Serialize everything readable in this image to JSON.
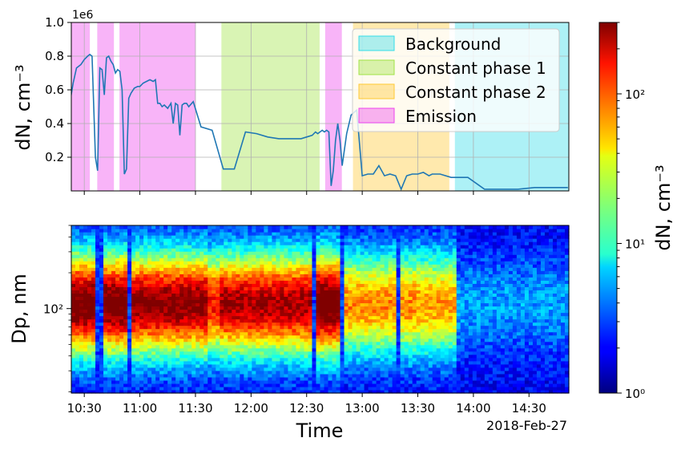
{
  "chart_data": [
    {
      "type": "line",
      "panel": "top",
      "ylabel": "dN, cm⁻³",
      "offset_label": "1e6",
      "ylim": [
        0,
        1.0
      ],
      "yticks": [
        0.2,
        0.4,
        0.6,
        0.8,
        1.0
      ],
      "ytick_labels": [
        "0.2",
        "0.4",
        "0.6",
        "0.8",
        "1.0"
      ],
      "xlim_minutes": [
        10.3833,
        14.8583
      ],
      "grid": true,
      "line_color": "#1f77b4",
      "series": [
        {
          "name": "dN",
          "x_hours": [
            10.38,
            10.4,
            10.43,
            10.47,
            10.5,
            10.53,
            10.55,
            10.57,
            10.6,
            10.62,
            10.64,
            10.66,
            10.68,
            10.7,
            10.72,
            10.74,
            10.76,
            10.78,
            10.8,
            10.82,
            10.84,
            10.86,
            10.88,
            10.9,
            10.92,
            10.95,
            10.98,
            11.0,
            11.03,
            11.06,
            11.09,
            11.12,
            11.14,
            11.16,
            11.18,
            11.2,
            11.22,
            11.25,
            11.28,
            11.3,
            11.32,
            11.34,
            11.36,
            11.38,
            11.4,
            11.42,
            11.44,
            11.48,
            11.55,
            11.65,
            11.75,
            11.85,
            11.95,
            12.05,
            12.15,
            12.25,
            12.35,
            12.45,
            12.5,
            12.55,
            12.58,
            12.6,
            12.62,
            12.64,
            12.66,
            12.68,
            12.7,
            12.72,
            12.74,
            12.76,
            12.78,
            12.8,
            12.82,
            12.86,
            12.9,
            12.95,
            13.0,
            13.05,
            13.1,
            13.15,
            13.2,
            13.25,
            13.3,
            13.35,
            13.4,
            13.45,
            13.5,
            13.55,
            13.6,
            13.63,
            13.65,
            13.7,
            13.8,
            13.95,
            14.1,
            14.25,
            14.4,
            14.55,
            14.7,
            14.85
          ],
          "y_million": [
            0.56,
            0.64,
            0.73,
            0.75,
            0.78,
            0.8,
            0.81,
            0.8,
            0.2,
            0.12,
            0.73,
            0.72,
            0.57,
            0.79,
            0.8,
            0.77,
            0.75,
            0.7,
            0.72,
            0.71,
            0.6,
            0.1,
            0.13,
            0.55,
            0.58,
            0.61,
            0.62,
            0.62,
            0.64,
            0.65,
            0.66,
            0.65,
            0.66,
            0.52,
            0.52,
            0.5,
            0.51,
            0.49,
            0.52,
            0.4,
            0.52,
            0.51,
            0.33,
            0.51,
            0.52,
            0.52,
            0.5,
            0.53,
            0.38,
            0.36,
            0.13,
            0.13,
            0.35,
            0.34,
            0.32,
            0.31,
            0.31,
            0.31,
            0.32,
            0.33,
            0.35,
            0.34,
            0.35,
            0.36,
            0.35,
            0.36,
            0.35,
            0.03,
            0.12,
            0.3,
            0.4,
            0.3,
            0.15,
            0.34,
            0.45,
            0.48,
            0.09,
            0.1,
            0.1,
            0.15,
            0.09,
            0.1,
            0.09,
            0.01,
            0.09,
            0.1,
            0.1,
            0.11,
            0.09,
            0.1,
            0.1,
            0.1,
            0.08,
            0.08,
            0.01,
            0.01,
            0.01,
            0.02,
            0.02,
            0.02
          ]
        }
      ],
      "shaded_regions": [
        {
          "label": "Emission",
          "color": "#ee44ee",
          "start_hour": 10.3833,
          "end_hour": 10.55
        },
        {
          "label": "Emission",
          "color": "#ee44ee",
          "start_hour": 10.6167,
          "end_hour": 10.7667
        },
        {
          "label": "Emission",
          "color": "#ee44ee",
          "start_hour": 10.8167,
          "end_hour": 11.5
        },
        {
          "label": "Constant phase 1",
          "color": "#9fe344",
          "start_hour": 11.7333,
          "end_hour": 12.6167
        },
        {
          "label": "Emission",
          "color": "#ee44ee",
          "start_hour": 12.6667,
          "end_hour": 12.8167
        },
        {
          "label": "Constant phase 2",
          "color": "#ffc933",
          "start_hour": 12.9167,
          "end_hour": 13.7833
        },
        {
          "label": "Background",
          "color": "#33dde8",
          "start_hour": 13.8333,
          "end_hour": 14.8583
        }
      ],
      "legend": {
        "location": "top-right",
        "entries": [
          {
            "label": "Background",
            "color": "#33dde8"
          },
          {
            "label": "Constant phase 1",
            "color": "#9fe344"
          },
          {
            "label": "Constant phase 2",
            "color": "#ffc933"
          },
          {
            "label": "Emission",
            "color": "#ee44ee"
          }
        ]
      }
    },
    {
      "type": "heatmap",
      "panel": "bottom",
      "ylabel": "Dp, nm",
      "xlabel": "Time",
      "y_scale": "log",
      "ylim_nm": [
        19.5,
        500
      ],
      "ytick_labels": [
        "10²"
      ],
      "xtick_labels": [
        "10:30",
        "11:00",
        "11:30",
        "12:00",
        "12:30",
        "13:00",
        "13:30",
        "14:00",
        "14:30"
      ],
      "xtick_hours": [
        10.5,
        11.0,
        11.5,
        12.0,
        12.5,
        13.0,
        13.5,
        14.0,
        14.5
      ],
      "date_label": "2018-Feb-27",
      "xlim_hours": [
        10.3833,
        14.8583
      ],
      "colorscale": "jet",
      "mode_diameter_nm": 110,
      "low_concentration_columns_hours": [
        10.62,
        10.66,
        10.9,
        12.56,
        12.83,
        13.32
      ],
      "segments": [
        {
          "start_hour": 10.3833,
          "end_hour": 10.6,
          "peak_level": 2.35
        },
        {
          "start_hour": 10.6,
          "end_hour": 10.9,
          "peak_level": 2.35
        },
        {
          "start_hour": 10.9,
          "end_hour": 11.6,
          "peak_level": 2.25
        },
        {
          "start_hour": 11.6,
          "end_hour": 11.73,
          "peak_level": 1.9
        },
        {
          "start_hour": 11.73,
          "end_hour": 12.6,
          "peak_level": 2.15
        },
        {
          "start_hour": 12.6,
          "end_hour": 12.85,
          "peak_level": 2.4
        },
        {
          "start_hour": 12.85,
          "end_hour": 13.5,
          "peak_level": 1.6
        },
        {
          "start_hour": 13.5,
          "end_hour": 13.83,
          "peak_level": 1.55
        },
        {
          "start_hour": 13.83,
          "end_hour": 14.8583,
          "peak_level": 0.45
        }
      ]
    },
    {
      "type": "colorbar",
      "label": "dN, cm⁻³",
      "scale": "log",
      "range": [
        1,
        300
      ],
      "major_tick_labels": [
        "10⁰",
        "10¹",
        "10²"
      ],
      "major_ticks": [
        1,
        10,
        100
      ],
      "colorscale": "jet"
    }
  ]
}
